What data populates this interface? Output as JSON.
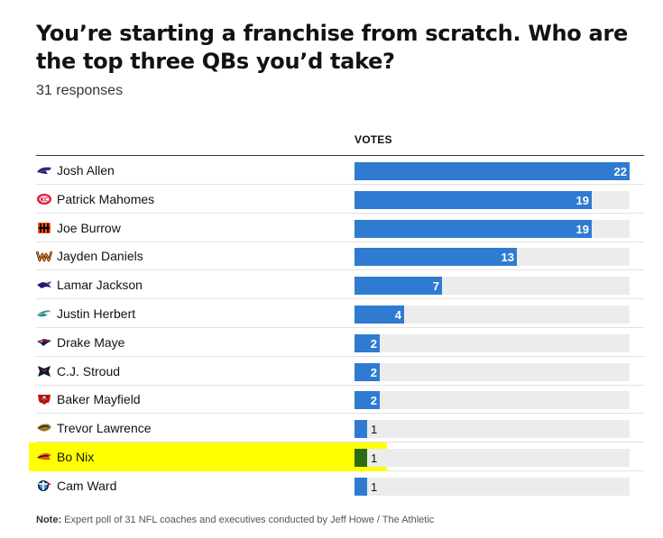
{
  "title": "You’re starting a franchise from scratch. Who are the top three QBs you’d take?",
  "subtitle": "31 responses",
  "column_header": "VOTES",
  "note_label": "Note:",
  "note_text": "Expert poll of 31 NFL coaches and executives conducted by Jeff Howe / The Athletic",
  "colors": {
    "bar": "#2e7bd1",
    "bar_highlight": "#2e6b12",
    "track": "#ececec",
    "highlight": "#ffff00"
  },
  "chart_data": {
    "type": "bar",
    "orientation": "horizontal",
    "title": "You’re starting a franchise from scratch. Who are the top three QBs you’d take?",
    "subtitle": "31 responses",
    "value_label": "VOTES",
    "xlim": [
      0,
      22
    ],
    "highlighted": "Bo Nix",
    "rows": [
      {
        "name": "Josh Allen",
        "team_icon": "bills-logo-icon",
        "value": 22
      },
      {
        "name": "Patrick Mahomes",
        "team_icon": "chiefs-logo-icon",
        "value": 19
      },
      {
        "name": "Joe Burrow",
        "team_icon": "bengals-logo-icon",
        "value": 19
      },
      {
        "name": "Jayden Daniels",
        "team_icon": "commanders-logo-icon",
        "value": 13
      },
      {
        "name": "Lamar Jackson",
        "team_icon": "ravens-logo-icon",
        "value": 7
      },
      {
        "name": "Justin Herbert",
        "team_icon": "chargers-logo-icon",
        "value": 4
      },
      {
        "name": "Drake Maye",
        "team_icon": "patriots-logo-icon",
        "value": 2
      },
      {
        "name": "C.J. Stroud",
        "team_icon": "texans-logo-icon",
        "value": 2
      },
      {
        "name": "Baker Mayfield",
        "team_icon": "buccaneers-logo-icon",
        "value": 2
      },
      {
        "name": "Trevor Lawrence",
        "team_icon": "jaguars-logo-icon",
        "value": 1
      },
      {
        "name": "Bo Nix",
        "team_icon": "broncos-logo-icon",
        "value": 1
      },
      {
        "name": "Cam Ward",
        "team_icon": "titans-logo-icon",
        "value": 1
      }
    ]
  }
}
